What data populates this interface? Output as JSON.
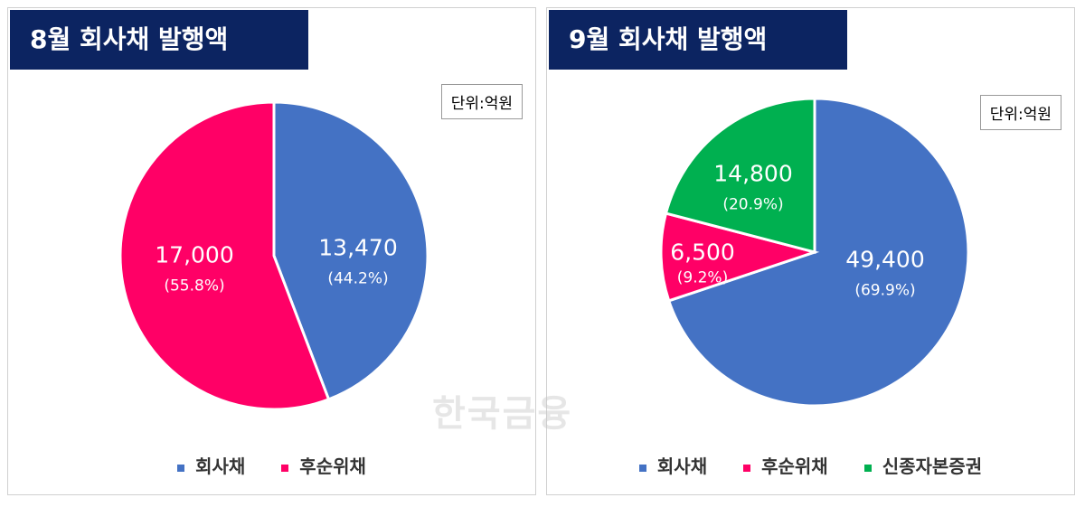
{
  "unit_label": "단위:억원",
  "watermark": "한국금융",
  "colors": {
    "title_bg": "#0c2461",
    "회사채": "#4472c4",
    "후순위채": "#ff0066",
    "신종자본증권": "#00b050"
  },
  "chart_data": [
    {
      "type": "pie",
      "title": "8월 회사채 발행액",
      "categories": [
        "회사채",
        "후순위채"
      ],
      "values": [
        13470,
        17000
      ],
      "value_labels": [
        "13,470",
        "17,000"
      ],
      "percent_labels": [
        "(44.2%)",
        "(55.8%)"
      ],
      "colors": [
        "#4472c4",
        "#ff0066"
      ],
      "legend": "bottom"
    },
    {
      "type": "pie",
      "title": "9월 회사채 발행액",
      "categories": [
        "회사채",
        "후순위채",
        "신종자본증권"
      ],
      "values": [
        49400,
        6500,
        14800
      ],
      "value_labels": [
        "49,400",
        "6,500",
        "14,800"
      ],
      "percent_labels": [
        "(69.9%)",
        "(9.2%)",
        "(20.9%)"
      ],
      "colors": [
        "#4472c4",
        "#ff0066",
        "#00b050"
      ],
      "legend": "bottom"
    }
  ]
}
